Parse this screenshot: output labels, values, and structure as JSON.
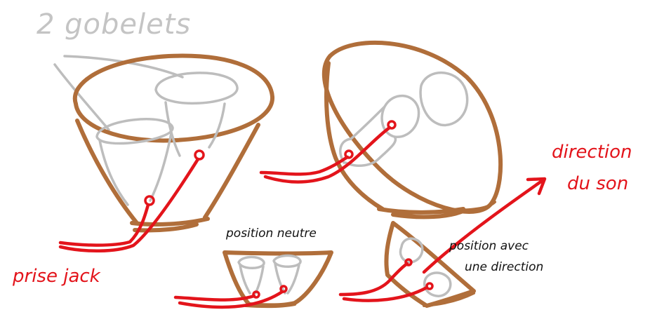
{
  "labels": {
    "cups": "2 gobelets",
    "jack": "prise jack",
    "neutral": "position neutre",
    "direction_line1": "position avec",
    "direction_line2": "une direction",
    "sound_line1": "direction",
    "sound_line2": "du son"
  },
  "colors": {
    "cone": "#b06e3a",
    "cup": "#bdbdbd",
    "cable": "#e3141b",
    "text_dark": "#111111",
    "text_light": "#c4c4c4"
  }
}
